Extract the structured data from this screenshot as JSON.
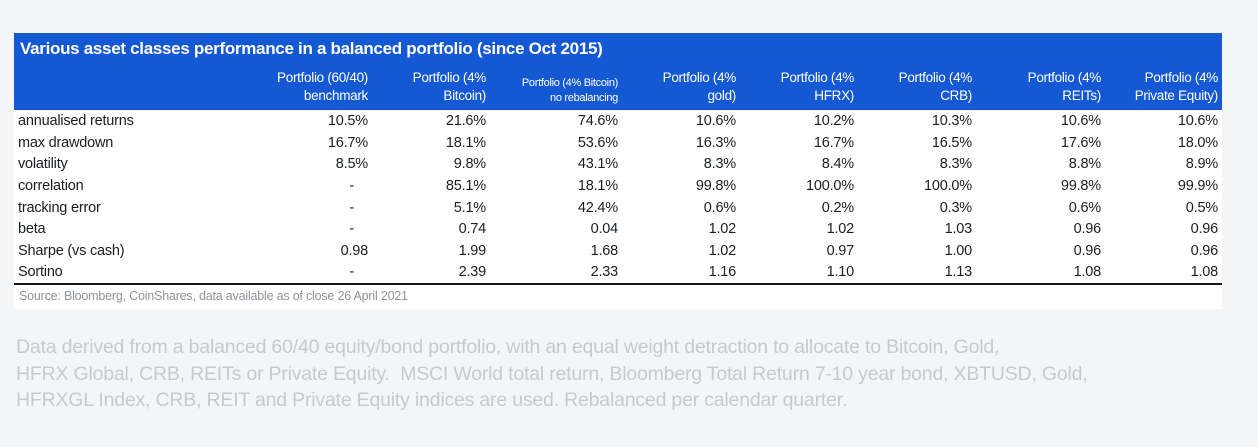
{
  "accent_color": "#1558d4",
  "table": {
    "title": "Various asset classes performance in a balanced portfolio (since Oct 2015)",
    "columns": [
      {
        "label": "Portfolio (60/40)\nbenchmark",
        "small": false
      },
      {
        "label": "Portfolio (4%\nBitcoin)",
        "small": false
      },
      {
        "label": "Portfolio (4% Bitcoin)\nno rebalancing",
        "small": true
      },
      {
        "label": "Portfolio (4%\ngold)",
        "small": false
      },
      {
        "label": "Portfolio (4%\nHFRX)",
        "small": false
      },
      {
        "label": "Portfolio (4%\nCRB)",
        "small": false
      },
      {
        "label": "Portfolio (4%\nREITs)",
        "small": false
      },
      {
        "label": "Portfolio (4%\nPrivate Equity)",
        "small": false
      }
    ],
    "rows": [
      {
        "label": "annualised returns",
        "values": [
          "10.5%",
          "21.6%",
          "74.6%",
          "10.6%",
          "10.2%",
          "10.3%",
          "10.6%",
          "10.6%"
        ]
      },
      {
        "label": "max drawdown",
        "values": [
          "16.7%",
          "18.1%",
          "53.6%",
          "16.3%",
          "16.7%",
          "16.5%",
          "17.6%",
          "18.0%"
        ]
      },
      {
        "label": "volatility",
        "values": [
          "8.5%",
          "9.8%",
          "43.1%",
          "8.3%",
          "8.4%",
          "8.3%",
          "8.8%",
          "8.9%"
        ]
      },
      {
        "label": "correlation",
        "values": [
          "-",
          "85.1%",
          "18.1%",
          "99.8%",
          "100.0%",
          "100.0%",
          "99.8%",
          "99.9%"
        ]
      },
      {
        "label": "tracking error",
        "values": [
          "-",
          "5.1%",
          "42.4%",
          "0.6%",
          "0.2%",
          "0.3%",
          "0.6%",
          "0.5%"
        ]
      },
      {
        "label": "beta",
        "values": [
          "-",
          "0.74",
          "0.04",
          "1.02",
          "1.02",
          "1.03",
          "0.96",
          "0.96"
        ]
      },
      {
        "label": "Sharpe (vs cash)",
        "values": [
          "0.98",
          "1.99",
          "1.68",
          "1.02",
          "0.97",
          "1.00",
          "0.96",
          "0.96"
        ]
      },
      {
        "label": "Sortino",
        "values": [
          "-",
          "2.39",
          "2.33",
          "1.16",
          "1.10",
          "1.13",
          "1.08",
          "1.08"
        ]
      }
    ],
    "source": "Source: Bloomberg, CoinShares, data available as of close 26 April 2021"
  },
  "footnote": {
    "lines": [
      "Data derived from a balanced 60/40 equity/bond portfolio, with an equal weight detraction to allocate to Bitcoin, Gold,",
      "HFRX Global, CRB, REITs or Private Equity.  MSCI World total return, Bloomberg Total Return 7-10 year bond, XBTUSD, Gold,",
      "HFRXGL Index, CRB, REIT and Private Equity indices are used. Rebalanced per calendar quarter."
    ]
  }
}
